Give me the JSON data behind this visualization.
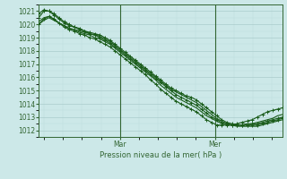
{
  "bg_color": "#cce8e8",
  "grid_major_color": "#aacccc",
  "grid_minor_color": "#bbdddd",
  "line_color": "#1a5c1a",
  "ylim": [
    1011.5,
    1021.5
  ],
  "yticks": [
    1012,
    1013,
    1014,
    1015,
    1016,
    1017,
    1018,
    1019,
    1020,
    1021
  ],
  "xlabel": "Pression niveau de la mer( hPa )",
  "xtick_labels": [
    "Mar",
    "Mer"
  ],
  "xtick_positions": [
    0.333,
    0.722
  ],
  "series": [
    {
      "y": [
        1020.5,
        1021.0,
        1021.0,
        1020.8,
        1020.5,
        1020.2,
        1020.0,
        1019.8,
        1019.7,
        1019.5,
        1019.4,
        1019.3,
        1019.2,
        1019.0,
        1018.8,
        1018.5,
        1018.2,
        1017.9,
        1017.6,
        1017.3,
        1017.0,
        1016.7,
        1016.4,
        1016.1,
        1015.8,
        1015.5,
        1015.2,
        1015.0,
        1014.8,
        1014.6,
        1014.5,
        1014.3,
        1014.0,
        1013.7,
        1013.4,
        1013.1,
        1012.8,
        1012.6,
        1012.5,
        1012.4,
        1012.4,
        1012.4,
        1012.4,
        1012.4,
        1012.5,
        1012.6,
        1012.7,
        1012.8,
        1012.9
      ],
      "marker": true
    },
    {
      "y": [
        1020.0,
        1020.3,
        1020.5,
        1020.3,
        1020.1,
        1019.9,
        1019.7,
        1019.6,
        1019.5,
        1019.4,
        1019.3,
        1019.2,
        1019.1,
        1018.9,
        1018.7,
        1018.4,
        1018.1,
        1017.8,
        1017.5,
        1017.2,
        1016.9,
        1016.6,
        1016.3,
        1016.0,
        1015.7,
        1015.4,
        1015.1,
        1014.9,
        1014.7,
        1014.5,
        1014.3,
        1014.1,
        1013.8,
        1013.5,
        1013.2,
        1012.9,
        1012.7,
        1012.5,
        1012.4,
        1012.3,
        1012.3,
        1012.3,
        1012.3,
        1012.3,
        1012.4,
        1012.5,
        1012.6,
        1012.7,
        1012.8
      ],
      "marker": false
    },
    {
      "y": [
        1020.8,
        1021.1,
        1021.0,
        1020.7,
        1020.4,
        1020.1,
        1019.9,
        1019.8,
        1019.6,
        1019.5,
        1019.3,
        1019.2,
        1019.0,
        1018.8,
        1018.6,
        1018.3,
        1018.0,
        1017.7,
        1017.4,
        1017.1,
        1016.8,
        1016.5,
        1016.2,
        1015.9,
        1015.6,
        1015.3,
        1015.0,
        1014.7,
        1014.5,
        1014.3,
        1014.1,
        1013.9,
        1013.6,
        1013.3,
        1013.0,
        1012.8,
        1012.6,
        1012.5,
        1012.4,
        1012.4,
        1012.4,
        1012.4,
        1012.5,
        1012.5,
        1012.6,
        1012.7,
        1012.8,
        1012.9,
        1013.0
      ],
      "marker": true
    },
    {
      "y": [
        1020.2,
        1020.5,
        1020.6,
        1020.4,
        1020.1,
        1019.9,
        1019.7,
        1019.6,
        1019.4,
        1019.3,
        1019.2,
        1019.0,
        1018.9,
        1018.7,
        1018.5,
        1018.2,
        1017.9,
        1017.6,
        1017.3,
        1017.0,
        1016.7,
        1016.4,
        1016.1,
        1015.8,
        1015.4,
        1015.1,
        1014.8,
        1014.5,
        1014.3,
        1014.1,
        1013.9,
        1013.7,
        1013.4,
        1013.1,
        1012.9,
        1012.7,
        1012.5,
        1012.4,
        1012.4,
        1012.4,
        1012.4,
        1012.5,
        1012.5,
        1012.6,
        1012.7,
        1012.8,
        1012.9,
        1013.1,
        1013.2
      ],
      "marker": false
    },
    {
      "y": [
        1020.0,
        1020.4,
        1020.6,
        1020.4,
        1020.1,
        1019.8,
        1019.6,
        1019.5,
        1019.3,
        1019.2,
        1019.0,
        1018.9,
        1018.7,
        1018.5,
        1018.3,
        1018.0,
        1017.7,
        1017.4,
        1017.1,
        1016.8,
        1016.5,
        1016.2,
        1015.8,
        1015.5,
        1015.1,
        1014.8,
        1014.5,
        1014.2,
        1014.0,
        1013.8,
        1013.6,
        1013.4,
        1013.1,
        1012.8,
        1012.6,
        1012.4,
        1012.4,
        1012.4,
        1012.4,
        1012.5,
        1012.6,
        1012.7,
        1012.8,
        1013.0,
        1013.2,
        1013.4,
        1013.5,
        1013.6,
        1013.7
      ],
      "marker": true
    }
  ],
  "vline_positions": [
    0.333,
    0.722
  ],
  "vline_color": "#336633"
}
